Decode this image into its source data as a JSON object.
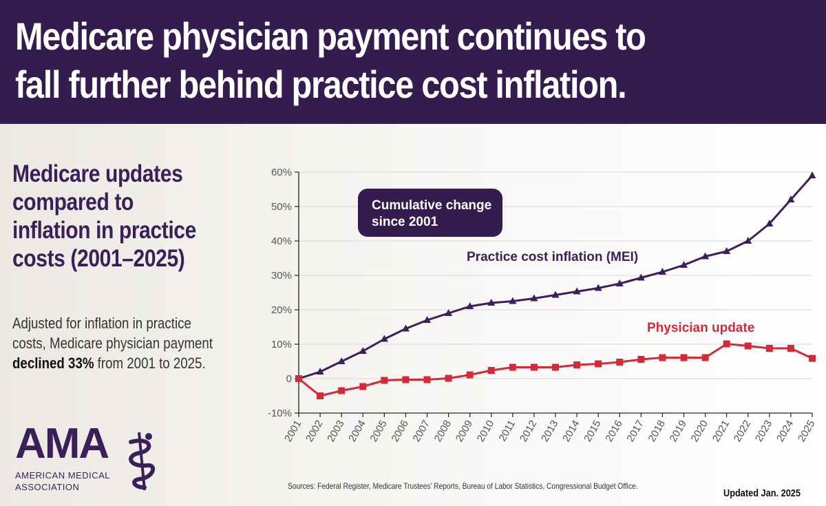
{
  "header": {
    "title_line1": "Medicare physician payment continues to",
    "title_line2": "fall further behind practice cost inflation."
  },
  "subtitle": {
    "line1": "Medicare updates",
    "line2": "compared to",
    "line3": "inflation in practice",
    "line4": "costs (2001–2025)"
  },
  "description": {
    "line1": "Adjusted for inflation in practice",
    "line2": "costs, Medicare physician payment",
    "bold": "declined 33%",
    "tail": " from 2001 to 2025."
  },
  "logo": {
    "name": "AMA",
    "line1": "AMERICAN MEDICAL",
    "line2": "ASSOCIATION",
    "icon": "caduceus-icon"
  },
  "footer": {
    "sources": "Sources: Federal Register, Medicare Trustees’ Reports, Bureau of Labor Statistics, Congressional Budget Office.",
    "updated": "Updated Jan. 2025"
  },
  "colors": {
    "header_bg": "#341c4e",
    "mei": "#3b1f59",
    "physician": "#d32a3a"
  },
  "chart_data": {
    "type": "line",
    "title": "Cumulative change since 2001",
    "callout_line1": "Cumulative change",
    "callout_line2": "since 2001",
    "x": [
      "2001",
      "2002",
      "2003",
      "2004",
      "2005",
      "2006",
      "2007",
      "2008",
      "2009",
      "2010",
      "2011",
      "2012",
      "2013",
      "2014",
      "2015",
      "2016",
      "2017",
      "2018",
      "2019",
      "2020",
      "2021",
      "2022",
      "2023",
      "2024",
      "2025"
    ],
    "ylim": [
      -10,
      60
    ],
    "yticks": [
      -10,
      0,
      10,
      20,
      30,
      40,
      50,
      60
    ],
    "ytick_labels": [
      "-10%",
      "0",
      "10%",
      "20%",
      "30%",
      "40%",
      "50%",
      "60%"
    ],
    "series": [
      {
        "name": "Practice cost inflation (MEI)",
        "marker": "triangle",
        "values": [
          0,
          2,
          5,
          8,
          11.5,
          14.5,
          17,
          19,
          21,
          22,
          22.5,
          23.3,
          24.3,
          25.3,
          26.3,
          27.6,
          29.3,
          31,
          33,
          35.5,
          37,
          40,
          45,
          52,
          59
        ]
      },
      {
        "name": "Physician update",
        "marker": "square",
        "values": [
          0,
          -5,
          -3.5,
          -2.3,
          -0.5,
          -0.3,
          -0.3,
          0.1,
          1.1,
          2.4,
          3.3,
          3.3,
          3.3,
          4,
          4.3,
          4.8,
          5.6,
          6.1,
          6.1,
          6.1,
          10.1,
          9.5,
          8.8,
          8.8,
          5.9
        ]
      }
    ]
  }
}
